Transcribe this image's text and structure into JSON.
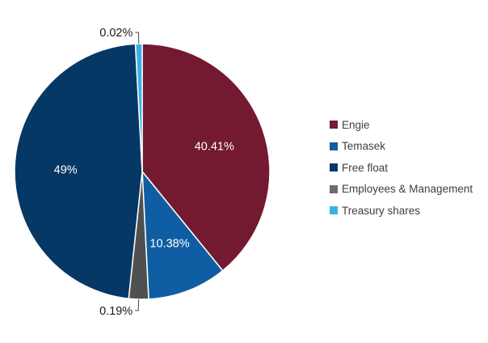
{
  "chart_data": {
    "type": "pie",
    "title": "",
    "slices": [
      {
        "name": "Engie",
        "value": 40.41,
        "label": "40.41%",
        "color": "#731a30"
      },
      {
        "name": "Temasek",
        "value": 10.38,
        "label": "10.38%",
        "color": "#0f5ea3"
      },
      {
        "name": "Employees & Management",
        "value": 0.19,
        "label": "0.19%",
        "color": "#505050"
      },
      {
        "name": "Free float",
        "value": 49,
        "label": "49%",
        "color": "#063865"
      },
      {
        "name": "Treasury shares",
        "value": 0.02,
        "label": "0.02%",
        "color": "#3ab2e6"
      }
    ],
    "legend": {
      "placement": "right",
      "entries": [
        {
          "label": "Engie",
          "color": "#731a30"
        },
        {
          "label": "Temasek",
          "color": "#0f5ea3"
        },
        {
          "label": "Free float",
          "color": "#063865"
        },
        {
          "label": "Employees & Management",
          "color": "#6d6d6d"
        },
        {
          "label": "Treasury shares",
          "color": "#3ab2e6"
        }
      ]
    }
  }
}
